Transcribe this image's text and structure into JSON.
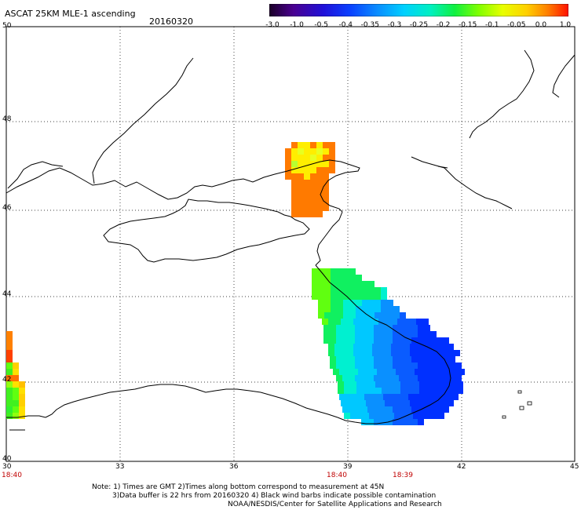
{
  "header": {
    "title": "ASCAT 25KM MLE-1 ascending",
    "date": "20160320"
  },
  "colorbar": {
    "labels": [
      "-3.0",
      "-1.0",
      "-0.5",
      "-0.4",
      "-0.35",
      "-0.3",
      "-0.25",
      "-0.2",
      "-0.15",
      "-0.1",
      "-0.05",
      "0.0",
      "1.0"
    ],
    "colors": [
      "#2a0040",
      "#4a0090",
      "#3010c8",
      "#0a30ff",
      "#0a7cff",
      "#00b8ff",
      "#00f0e8",
      "#00f070",
      "#40ff10",
      "#c8ff00",
      "#ffe000",
      "#ff9000",
      "#ff2000"
    ]
  },
  "axes": {
    "lon_ticks": [
      "30",
      "33",
      "36",
      "39",
      "42",
      "45"
    ],
    "lat_ticks": [
      "50",
      "48",
      "46",
      "44",
      "42",
      "40"
    ]
  },
  "times": [
    {
      "label": "18:40",
      "lon": 30
    },
    {
      "label": "18:40",
      "lon": 39
    },
    {
      "label": "18:39",
      "lon": 40.5
    }
  ],
  "notes": {
    "line1": "Note: 1) Times are GMT 2)Times along bottom correspond to measurement at 45N",
    "line2": "3)Data buffer is 22 hrs from 20160320 4) Black wind barbs indicate possible contamination",
    "line3": "NOAA/NESDIS/Center for Satellite Applications and Research"
  }
}
